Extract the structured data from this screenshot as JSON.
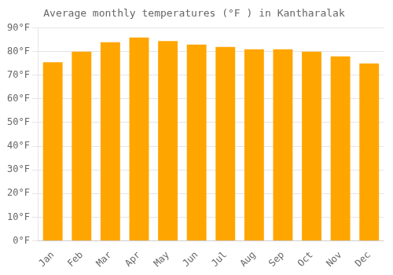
{
  "chart_data": {
    "type": "bar",
    "title": "Average monthly temperatures (°F ) in Kantharalak",
    "categories": [
      "Jan",
      "Feb",
      "Mar",
      "Apr",
      "May",
      "Jun",
      "Jul",
      "Aug",
      "Sep",
      "Oct",
      "Nov",
      "Dec"
    ],
    "values": [
      75.5,
      80.0,
      84.0,
      86.0,
      84.5,
      83.0,
      82.0,
      81.0,
      81.0,
      80.0,
      78.0,
      75.0
    ],
    "color": "#FFA500",
    "ylim": [
      0,
      90
    ],
    "yticks": [
      {
        "value": 0,
        "label": "0°F"
      },
      {
        "value": 10,
        "label": "10°F"
      },
      {
        "value": 20,
        "label": "20°F"
      },
      {
        "value": 30,
        "label": "30°F"
      },
      {
        "value": 40,
        "label": "40°F"
      },
      {
        "value": 50,
        "label": "50°F"
      },
      {
        "value": 60,
        "label": "60°F"
      },
      {
        "value": 70,
        "label": "70°F"
      },
      {
        "value": 80,
        "label": "80°F"
      },
      {
        "value": 90,
        "label": "90°F"
      }
    ],
    "grid": true
  }
}
